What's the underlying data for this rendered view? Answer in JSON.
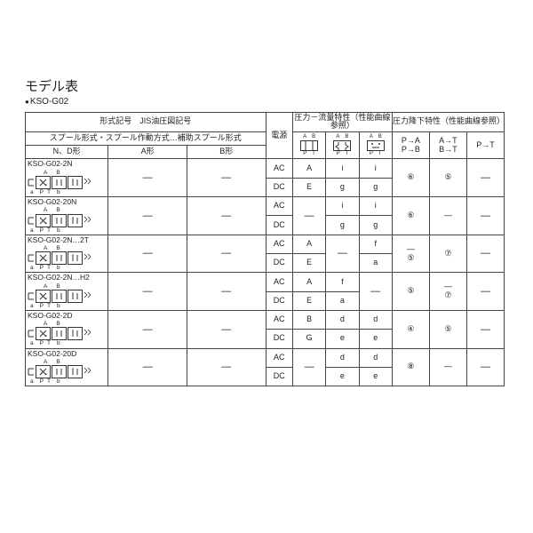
{
  "title": "モデル表",
  "subtitle": "KSO-G02",
  "head": {
    "col1": "形式記号　JIS油圧図記号",
    "spool": "スプール形式・スプール作動方式…補助スプール形式",
    "nd": "N、D形",
    "a": "A形",
    "b": "B形",
    "power": "電源",
    "flow": "圧力－流量特性（性能曲線参照）",
    "drop": "圧力降下特性（性能曲線参照）",
    "p1a": "P→A",
    "p1b": "P→B",
    "p2a": "A→T",
    "p2b": "B→T",
    "p3": "P→T",
    "sA": "A",
    "sB": "B",
    "sP": "P",
    "sT": "T"
  },
  "rows": [
    {
      "name": "KSO-G02-2N",
      "ab": "AB",
      "bot": "a  P T   b",
      "A": "—",
      "B": "—",
      "ac": {
        "f1": "A",
        "f2": "i",
        "f3": "i"
      },
      "dc": {
        "f1": "E",
        "f2": "g",
        "f3": "g"
      },
      "d1": "⑥",
      "d2": "⑤",
      "d3": "—"
    },
    {
      "name": "KSO-G02-20N",
      "ab": "AB",
      "bot": "a  P T   b",
      "A": "—",
      "B": "—",
      "ac": {
        "f1": "—",
        "f2": "i",
        "f3": "i"
      },
      "dc": {
        "f1": "",
        "f2": "g",
        "f3": "g"
      },
      "d1": "⑥",
      "d2": "—",
      "d3": "—",
      "acspan": true
    },
    {
      "name": "KSO-G02-2N…2T",
      "ab": "AB",
      "bot": "a  P T   b",
      "A": "—",
      "B": "—",
      "ac": {
        "f1": "A",
        "f2": "—",
        "f3": "f"
      },
      "dc": {
        "f1": "E",
        "f2": "",
        "f3": "a"
      },
      "d1": "—",
      "d2": "⑦",
      "d3": "—",
      "d1b": "⑤"
    },
    {
      "name": "KSO-G02-2N…H2",
      "ab": "AB",
      "bot": "a  P T   b",
      "A": "—",
      "B": "—",
      "ac": {
        "f1": "A",
        "f2": "f",
        "f3": "—"
      },
      "dc": {
        "f1": "E",
        "f2": "a",
        "f3": ""
      },
      "d1": "⑤",
      "d2": "—",
      "d3": "—",
      "d2b": "⑦"
    },
    {
      "name": "KSO-G02-2D",
      "ab": "AB",
      "bot": "a  P T   b",
      "A": "—",
      "B": "—",
      "ac": {
        "f1": "B",
        "f2": "d",
        "f3": "d"
      },
      "dc": {
        "f1": "G",
        "f2": "e",
        "f3": "e"
      },
      "d1": "④",
      "d2": "⑤",
      "d3": "—"
    },
    {
      "name": "KSO-G02-20D",
      "ab": "AB",
      "bot": "a  P T   b",
      "A": "—",
      "B": "—",
      "ac": {
        "f1": "—",
        "f2": "d",
        "f3": "d"
      },
      "dc": {
        "f1": "",
        "f2": "e",
        "f3": "e"
      },
      "d1": "⑧",
      "d2": "—",
      "d3": "—",
      "acspan": true
    }
  ]
}
